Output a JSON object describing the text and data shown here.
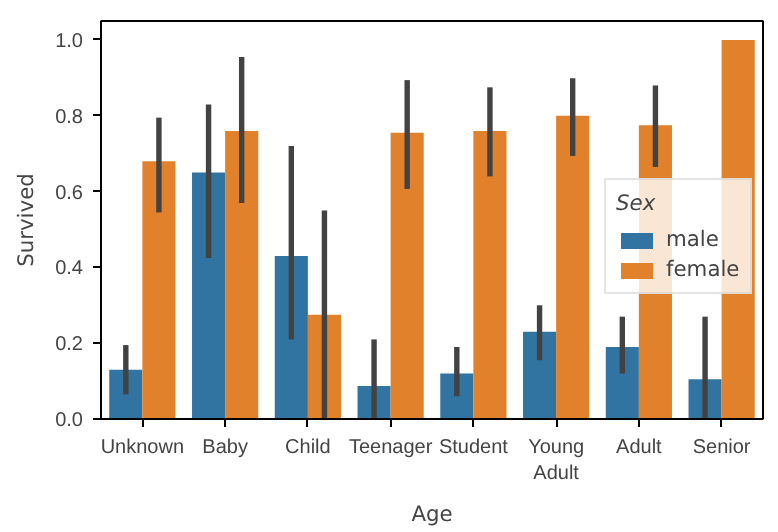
{
  "chart_data": {
    "type": "bar",
    "xlabel": "Age",
    "ylabel": "Survived",
    "legend_title": "Sex",
    "categories": [
      "Unknown",
      "Baby",
      "Child",
      "Teenager",
      "Student",
      "Young Adult",
      "Adult",
      "Senior"
    ],
    "series": [
      {
        "name": "male",
        "color": "#3274a1",
        "values": [
          0.13,
          0.65,
          0.43,
          0.087,
          0.12,
          0.23,
          0.19,
          0.105
        ],
        "errors": [
          [
            0.065,
            0.195
          ],
          [
            0.425,
            0.83
          ],
          [
            0.21,
            0.72
          ],
          [
            0,
            0.21
          ],
          [
            0.06,
            0.19
          ],
          [
            0.155,
            0.3
          ],
          [
            0.12,
            0.27
          ],
          [
            0,
            0.27
          ]
        ]
      },
      {
        "name": "female",
        "color": "#e1812c",
        "values": [
          0.68,
          0.76,
          0.275,
          0.755,
          0.76,
          0.8,
          0.775,
          1.0
        ],
        "errors": [
          [
            0.545,
            0.795
          ],
          [
            0.57,
            0.955
          ],
          [
            0,
            0.55
          ],
          [
            0.607,
            0.894
          ],
          [
            0.64,
            0.875
          ],
          [
            0.694,
            0.899
          ],
          [
            0.665,
            0.88
          ],
          null
        ]
      }
    ],
    "ylim": [
      0,
      1.05
    ],
    "yticks": [
      {
        "value": 0,
        "label": "0.0"
      },
      0.2,
      0.4,
      0.6,
      0.8,
      {
        "value": 1,
        "label": "1.0"
      }
    ],
    "grid": false,
    "legend": "right"
  }
}
